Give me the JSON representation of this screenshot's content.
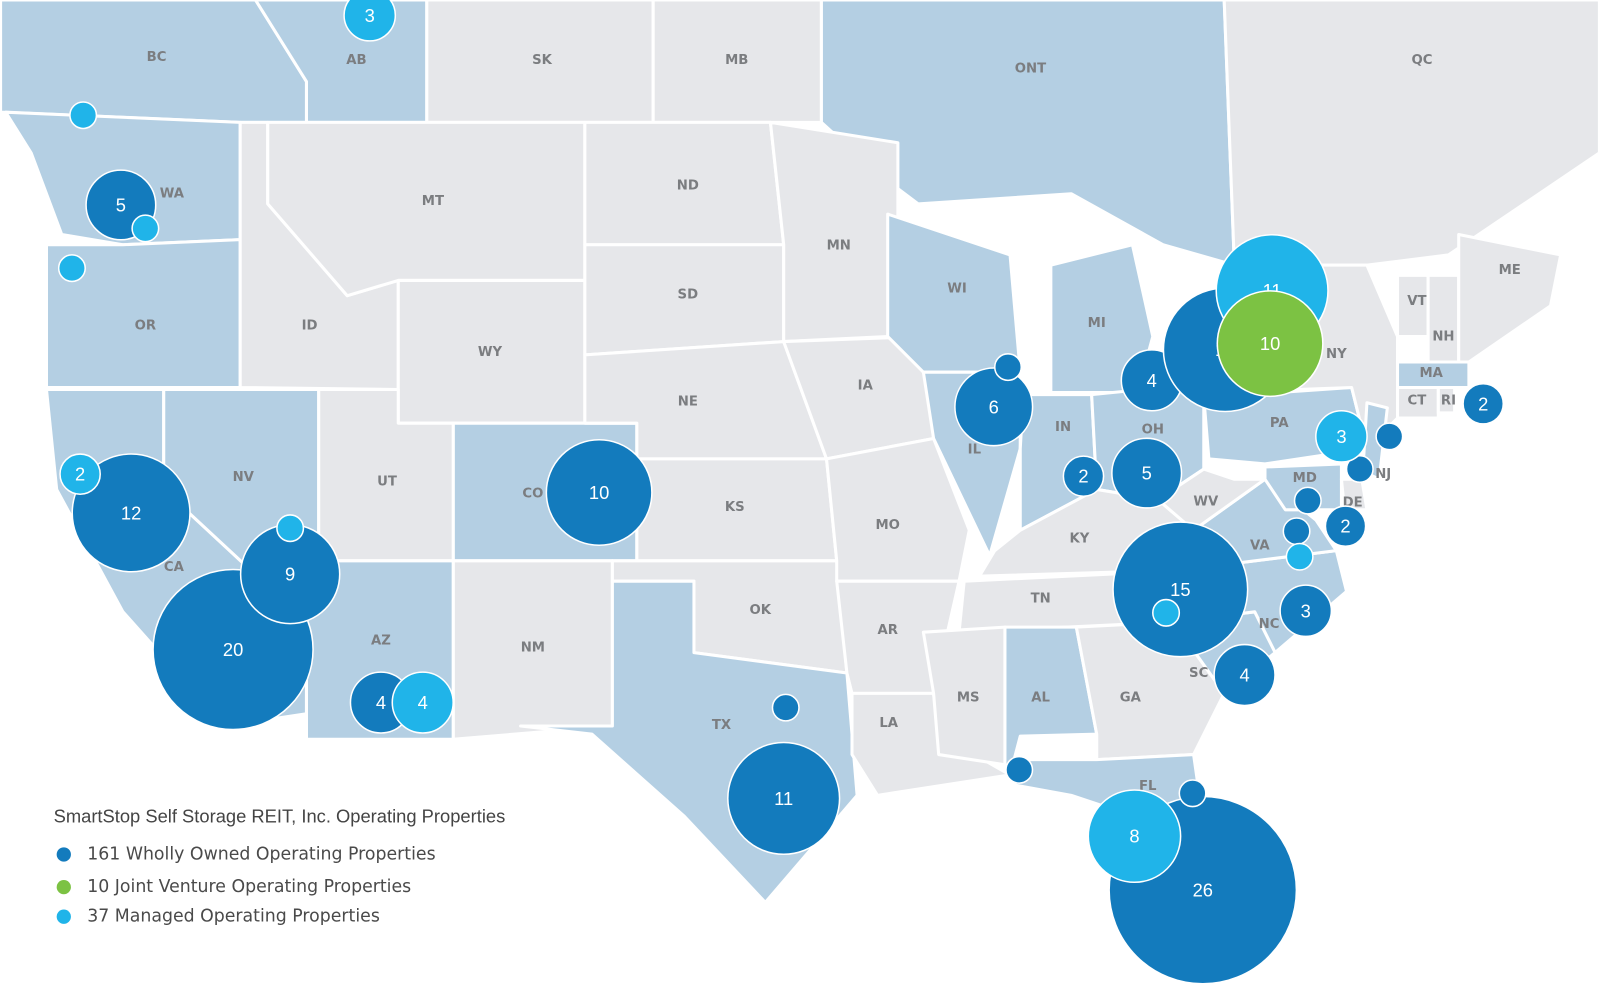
{
  "map": {
    "title": "SmartStop Self Storage REIT, Inc. Operating Properties",
    "shaded_color": "#b4cfe3",
    "base_color": "#e6e7ea",
    "series": [
      {
        "name": "161 Wholly Owned Operating Properties",
        "color": "#137bbd",
        "values": [
          5,
          12,
          20,
          9,
          4,
          10,
          1,
          11,
          6,
          1,
          2,
          5,
          4,
          13,
          1,
          1,
          1,
          1,
          2,
          2,
          15,
          3,
          4,
          1,
          26,
          1
        ]
      },
      {
        "name": "10 Joint Venture Operating Properties",
        "color": "#7cc243",
        "values": [
          10
        ]
      },
      {
        "name": "37 Managed Operating Properties",
        "color": "#20b4e9",
        "values": [
          3,
          1,
          1,
          1,
          2,
          1,
          4,
          3,
          1,
          1,
          11,
          8
        ]
      }
    ],
    "regions": [
      {
        "label": "BC",
        "shaded": true
      },
      {
        "label": "AB",
        "shaded": true
      },
      {
        "label": "SK",
        "shaded": false
      },
      {
        "label": "MB",
        "shaded": false
      },
      {
        "label": "ONT",
        "shaded": true
      },
      {
        "label": "QC",
        "shaded": false
      },
      {
        "label": "WA",
        "shaded": true
      },
      {
        "label": "OR",
        "shaded": true
      },
      {
        "label": "CA",
        "shaded": true
      },
      {
        "label": "NV",
        "shaded": true
      },
      {
        "label": "ID",
        "shaded": false
      },
      {
        "label": "MT",
        "shaded": false
      },
      {
        "label": "WY",
        "shaded": false
      },
      {
        "label": "UT",
        "shaded": false
      },
      {
        "label": "CO",
        "shaded": true
      },
      {
        "label": "AZ",
        "shaded": true
      },
      {
        "label": "NM",
        "shaded": false
      },
      {
        "label": "ND",
        "shaded": false
      },
      {
        "label": "SD",
        "shaded": false
      },
      {
        "label": "NE",
        "shaded": false
      },
      {
        "label": "KS",
        "shaded": false
      },
      {
        "label": "OK",
        "shaded": false
      },
      {
        "label": "TX",
        "shaded": true
      },
      {
        "label": "MN",
        "shaded": false
      },
      {
        "label": "IA",
        "shaded": false
      },
      {
        "label": "MO",
        "shaded": false
      },
      {
        "label": "AR",
        "shaded": false
      },
      {
        "label": "LA",
        "shaded": false
      },
      {
        "label": "WI",
        "shaded": true
      },
      {
        "label": "IL",
        "shaded": true
      },
      {
        "label": "MI",
        "shaded": true
      },
      {
        "label": "IN",
        "shaded": true
      },
      {
        "label": "OH",
        "shaded": true
      },
      {
        "label": "KY",
        "shaded": false
      },
      {
        "label": "TN",
        "shaded": false
      },
      {
        "label": "MS",
        "shaded": false
      },
      {
        "label": "AL",
        "shaded": true
      },
      {
        "label": "GA",
        "shaded": false
      },
      {
        "label": "FL",
        "shaded": true
      },
      {
        "label": "SC",
        "shaded": true
      },
      {
        "label": "NC",
        "shaded": true
      },
      {
        "label": "VA",
        "shaded": true
      },
      {
        "label": "WV",
        "shaded": false
      },
      {
        "label": "PA",
        "shaded": true
      },
      {
        "label": "NY",
        "shaded": false
      },
      {
        "label": "MD",
        "shaded": true
      },
      {
        "label": "DE",
        "shaded": false
      },
      {
        "label": "NJ",
        "shaded": true
      },
      {
        "label": "VT",
        "shaded": false
      },
      {
        "label": "NH",
        "shaded": false
      },
      {
        "label": "ME",
        "shaded": false
      },
      {
        "label": "MA",
        "shaded": true
      },
      {
        "label": "CT",
        "shaded": false
      },
      {
        "label": "RI",
        "shaded": false
      }
    ]
  }
}
